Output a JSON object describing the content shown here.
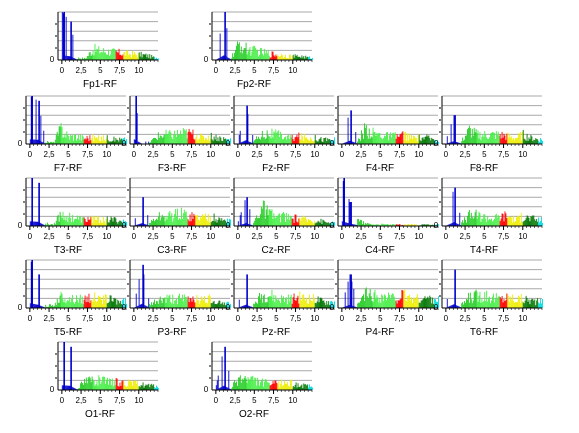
{
  "chart_data": {
    "type": "bar",
    "layout": "montage of spectral panels, one per EEG channel",
    "xlabel": "",
    "ylabel": "",
    "grid": true,
    "x_ticks": [
      "0",
      "2,5",
      "5",
      "7,5",
      "10"
    ],
    "xlim": [
      -0.5,
      12.5
    ],
    "ylim": [
      0,
      1
    ],
    "band_colors": [
      {
        "range": [
          0,
          2
        ],
        "color": "#0000cc"
      },
      {
        "range": [
          2,
          4
        ],
        "color": "#22cc22"
      },
      {
        "range": [
          4,
          7
        ],
        "color": "#44ee44"
      },
      {
        "range": [
          7,
          8
        ],
        "color": "#ff0000"
      },
      {
        "range": [
          8,
          10
        ],
        "color": "#eeee00"
      },
      {
        "range": [
          10,
          12
        ],
        "color": "#007700"
      },
      {
        "range": [
          12,
          13
        ],
        "color": "#00dddd"
      }
    ],
    "panels": [
      {
        "label": "Fp1-RF",
        "profile": [
          1.0,
          0.8,
          0.07,
          0.05,
          0.35,
          0.3,
          0.28,
          0.25,
          0.22,
          0.2,
          0.18,
          0.15,
          0.08
        ]
      },
      {
        "label": "Fp2-RF",
        "profile": [
          0.1,
          1.0,
          0.1,
          0.5,
          0.35,
          0.3,
          0.25,
          0.2,
          0.18,
          0.15,
          0.12,
          0.12,
          0.08
        ]
      },
      {
        "label": "F7-RF",
        "profile": [
          1.0,
          0.9,
          0.07,
          0.05,
          0.5,
          0.25,
          0.25,
          0.2,
          0.22,
          0.18,
          0.2,
          0.15,
          0.15
        ]
      },
      {
        "label": "F3-RF",
        "profile": [
          1.0,
          0.05,
          0.05,
          0.25,
          0.3,
          0.3,
          0.35,
          0.35,
          0.3,
          0.2,
          0.25,
          0.2,
          0.15
        ]
      },
      {
        "label": "Fz-RF",
        "profile": [
          0.1,
          0.8,
          0.1,
          0.3,
          0.35,
          0.3,
          0.25,
          0.2,
          0.25,
          0.2,
          0.2,
          0.15,
          0.15
        ]
      },
      {
        "label": "F4-RF",
        "profile": [
          0.1,
          0.7,
          0.1,
          0.5,
          0.35,
          0.3,
          0.25,
          0.25,
          0.3,
          0.2,
          0.2,
          0.2,
          0.15
        ]
      },
      {
        "label": "F8-RF",
        "profile": [
          0.1,
          0.6,
          0.1,
          0.45,
          0.3,
          0.3,
          0.3,
          0.3,
          0.25,
          0.2,
          0.3,
          0.2,
          0.15
        ]
      },
      {
        "label": "T3-RF",
        "profile": [
          1.0,
          0.9,
          0.08,
          0.05,
          0.4,
          0.3,
          0.25,
          0.2,
          0.25,
          0.2,
          0.2,
          0.2,
          0.15
        ]
      },
      {
        "label": "C3-RF",
        "profile": [
          0.1,
          0.6,
          0.1,
          0.3,
          0.3,
          0.35,
          0.4,
          0.35,
          0.3,
          0.3,
          0.3,
          0.2,
          0.2
        ]
      },
      {
        "label": "Cz-RF",
        "profile": [
          0.1,
          0.6,
          0.1,
          0.65,
          0.4,
          0.3,
          0.3,
          0.25,
          0.25,
          0.2,
          0.2,
          0.15,
          0.1
        ]
      },
      {
        "label": "C4-RF",
        "profile": [
          1.0,
          0.5,
          0.2,
          0.08,
          0.06,
          0.05,
          0.05,
          0.04,
          0.04,
          0.05,
          0.04,
          0.04,
          0.04
        ]
      },
      {
        "label": "T4-RF",
        "profile": [
          0.1,
          0.8,
          0.1,
          0.35,
          0.35,
          0.3,
          0.25,
          0.3,
          0.35,
          0.2,
          0.3,
          0.25,
          0.2
        ]
      },
      {
        "label": "T5-RF",
        "profile": [
          1.0,
          0.7,
          0.08,
          0.08,
          0.35,
          0.3,
          0.3,
          0.3,
          0.4,
          0.25,
          0.3,
          0.25,
          0.2
        ]
      },
      {
        "label": "P3-RF",
        "profile": [
          0.1,
          0.9,
          0.1,
          0.25,
          0.3,
          0.3,
          0.3,
          0.3,
          0.35,
          0.25,
          0.3,
          0.2,
          0.15
        ]
      },
      {
        "label": "Pz-RF",
        "profile": [
          0.1,
          0.7,
          0.1,
          0.4,
          0.45,
          0.3,
          0.3,
          0.3,
          0.35,
          0.3,
          0.3,
          0.2,
          0.2
        ]
      },
      {
        "label": "P4-RF",
        "profile": [
          0.1,
          0.7,
          0.1,
          0.45,
          0.4,
          0.35,
          0.35,
          0.3,
          0.4,
          0.3,
          0.3,
          0.3,
          0.3
        ]
      },
      {
        "label": "T6-RF",
        "profile": [
          0.1,
          0.8,
          0.1,
          0.35,
          0.4,
          0.45,
          0.35,
          0.3,
          0.35,
          0.3,
          0.3,
          0.25,
          0.2
        ]
      },
      {
        "label": "O1-RF",
        "profile": [
          1.0,
          0.9,
          0.08,
          0.3,
          0.35,
          0.3,
          0.25,
          0.25,
          0.25,
          0.2,
          0.2,
          0.15,
          0.12
        ]
      },
      {
        "label": "O2-RF",
        "profile": [
          0.1,
          0.9,
          0.1,
          0.4,
          0.35,
          0.3,
          0.25,
          0.2,
          0.2,
          0.25,
          0.2,
          0.15,
          0.12
        ]
      }
    ]
  }
}
